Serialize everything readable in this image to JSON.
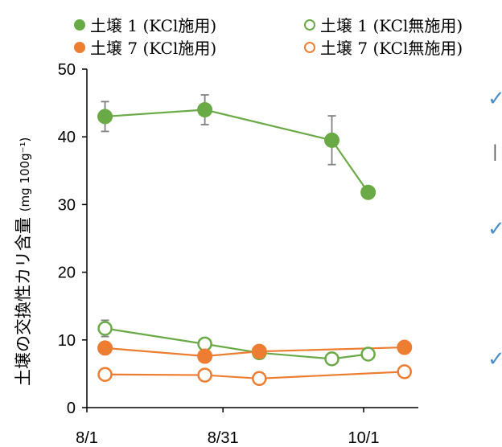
{
  "chart_data": {
    "type": "line",
    "ylabel": "土壌の交換性カリ含量",
    "ylabel_unit": "(mg 100g⁻¹)",
    "ylim": [
      0,
      50
    ],
    "y_ticks": [
      "0",
      "10",
      "20",
      "30",
      "40",
      "50"
    ],
    "x_ticks": [
      "8/1",
      "8/31",
      "10/1"
    ],
    "legend": [
      {
        "label": "土壌 1 (KCl施用)",
        "color": "#6aaa46",
        "filled": true
      },
      {
        "label": "土壌 1 (KCl無施用)",
        "color": "#6aaa46",
        "filled": false
      },
      {
        "label": "土壌 7 (KCl施用)",
        "color": "#ed7d31",
        "filled": true
      },
      {
        "label": "土壌 7 (KCl無施用)",
        "color": "#ed7d31",
        "filled": false
      }
    ],
    "series": [
      {
        "name": "土壌 1 (KCl施用)",
        "color": "#6aaa46",
        "filled": true,
        "points": [
          {
            "x": "8/5",
            "y": 43,
            "err": 2.2
          },
          {
            "x": "8/27",
            "y": 44,
            "err": 2.2
          },
          {
            "x": "9/24",
            "y": 39.5,
            "err": 3.6
          },
          {
            "x": "10/2",
            "y": 31.8,
            "err": 0
          }
        ]
      },
      {
        "name": "土壌 1 (KCl無施用)",
        "color": "#6aaa46",
        "filled": false,
        "points": [
          {
            "x": "8/5",
            "y": 11.7,
            "err": 1.2
          },
          {
            "x": "8/27",
            "y": 9.4,
            "err": 0
          },
          {
            "x": "9/8",
            "y": 8.1,
            "err": 0
          },
          {
            "x": "9/24",
            "y": 7.2,
            "err": 0
          },
          {
            "x": "10/2",
            "y": 7.9,
            "err": 0
          }
        ]
      },
      {
        "name": "土壌 7 (KCl施用)",
        "color": "#ed7d31",
        "filled": true,
        "points": [
          {
            "x": "8/5",
            "y": 8.8,
            "err": 0
          },
          {
            "x": "8/27",
            "y": 7.6,
            "err": 0.8
          },
          {
            "x": "9/8",
            "y": 8.3,
            "err": 0
          },
          {
            "x": "10/10",
            "y": 8.9,
            "err": 0
          }
        ]
      },
      {
        "name": "土壌 7 (KCl無施用)",
        "color": "#ed7d31",
        "filled": false,
        "points": [
          {
            "x": "8/5",
            "y": 4.9,
            "err": 0
          },
          {
            "x": "8/27",
            "y": 4.8,
            "err": 0
          },
          {
            "x": "9/8",
            "y": 4.3,
            "err": 0.5
          },
          {
            "x": "10/10",
            "y": 5.3,
            "err": 0
          }
        ]
      }
    ]
  },
  "right_fragments": [
    {
      "symbol": "✓"
    },
    {
      "symbol": "✓"
    },
    {
      "symbol": "✓"
    }
  ]
}
